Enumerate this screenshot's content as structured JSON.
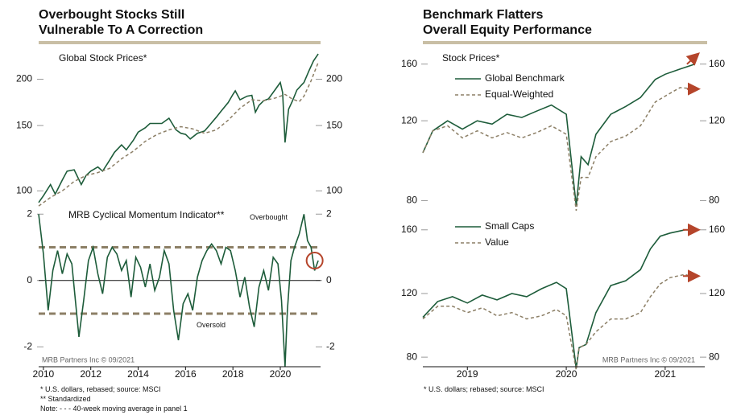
{
  "left": {
    "title_line1": "Overbought Stocks Still",
    "title_line2": "Vulnerable To A Correction",
    "notes": [
      "*  U.S. dollars, rebased; source: MSCI",
      "** Standardized",
      "Note: - - - 40-week moving average in panel 1"
    ]
  },
  "right": {
    "title_line1": "Benchmark Flatters",
    "title_line2": "Overall Equity Performance",
    "notes": [
      "* U.S. dollars; rebased; source: MSCI"
    ]
  },
  "colors": {
    "green": "#1d5c3a",
    "tan": "#8c7f66",
    "band": "#8c7f66",
    "arrow": "#b5452b",
    "rule": "#c9bfa5"
  },
  "chart_data": [
    {
      "type": "line",
      "title": "Global Stock Prices*",
      "y_scale": "log",
      "ylim": [
        92,
        240
      ],
      "yticks": [
        100,
        150,
        200
      ],
      "xlim": [
        2009.8,
        2021.7
      ],
      "series": [
        {
          "key": "price",
          "style": "solid",
          "color": "green",
          "x": [
            2009.8,
            2010.0,
            2010.3,
            2010.5,
            2010.8,
            2011.0,
            2011.3,
            2011.6,
            2011.8,
            2012.0,
            2012.3,
            2012.5,
            2012.8,
            2013.0,
            2013.3,
            2013.5,
            2013.8,
            2014.0,
            2014.3,
            2014.5,
            2014.8,
            2015.0,
            2015.3,
            2015.6,
            2015.8,
            2016.0,
            2016.2,
            2016.5,
            2016.8,
            2017.0,
            2017.3,
            2017.5,
            2017.8,
            2018.0,
            2018.1,
            2018.3,
            2018.6,
            2018.8,
            2018.95,
            2019.1,
            2019.3,
            2019.5,
            2019.8,
            2020.0,
            2020.1,
            2020.2,
            2020.35,
            2020.5,
            2020.7,
            2020.9,
            2021.0,
            2021.2,
            2021.4,
            2021.6
          ],
          "y": [
            93,
            97,
            104,
            98,
            107,
            113,
            114,
            104,
            110,
            113,
            116,
            113,
            121,
            127,
            133,
            129,
            137,
            144,
            148,
            152,
            152,
            152,
            157,
            146,
            143,
            142,
            138,
            143,
            145,
            150,
            158,
            164,
            173,
            182,
            186,
            176,
            180,
            181,
            163,
            170,
            175,
            177,
            188,
            196,
            184,
            135,
            166,
            174,
            187,
            193,
            196,
            210,
            224,
            234
          ]
        },
        {
          "key": "ma40",
          "style": "dashed",
          "color": "tan",
          "x": [
            2009.8,
            2010.3,
            2010.8,
            2011.3,
            2011.8,
            2012.3,
            2012.8,
            2013.3,
            2013.8,
            2014.3,
            2014.8,
            2015.3,
            2015.8,
            2016.3,
            2016.8,
            2017.3,
            2017.8,
            2018.3,
            2018.8,
            2019.3,
            2019.8,
            2020.2,
            2020.5,
            2020.8,
            2021.0,
            2021.3,
            2021.6
          ],
          "y": [
            91,
            96,
            100,
            106,
            110,
            112,
            115,
            122,
            128,
            136,
            142,
            146,
            149,
            147,
            143,
            146,
            155,
            167,
            176,
            175,
            178,
            182,
            177,
            174,
            180,
            198,
            222
          ]
        }
      ]
    },
    {
      "type": "line",
      "title": "MRB Cyclical Momentum Indicator**",
      "ylim": [
        -2.6,
        2.2
      ],
      "yticks": [
        -2,
        0,
        2
      ],
      "xlim": [
        2009.8,
        2021.7
      ],
      "xticks": [
        2010,
        2012,
        2014,
        2016,
        2018,
        2020
      ],
      "bands": [
        1,
        -1
      ],
      "annotations": [
        "Overbought",
        "Oversold"
      ],
      "source": "MRB Partners Inc © 09/2021",
      "series": [
        {
          "key": "momentum",
          "style": "solid",
          "color": "green",
          "x": [
            2009.8,
            2010.0,
            2010.2,
            2010.4,
            2010.6,
            2010.8,
            2011.0,
            2011.2,
            2011.5,
            2011.7,
            2011.9,
            2012.1,
            2012.3,
            2012.5,
            2012.7,
            2012.9,
            2013.1,
            2013.3,
            2013.5,
            2013.7,
            2013.9,
            2014.1,
            2014.3,
            2014.5,
            2014.7,
            2014.9,
            2015.1,
            2015.3,
            2015.5,
            2015.7,
            2015.9,
            2016.1,
            2016.3,
            2016.5,
            2016.7,
            2016.9,
            2017.1,
            2017.3,
            2017.5,
            2017.7,
            2017.9,
            2018.1,
            2018.3,
            2018.5,
            2018.7,
            2018.9,
            2019.1,
            2019.3,
            2019.5,
            2019.7,
            2019.9,
            2020.05,
            2020.2,
            2020.3,
            2020.45,
            2020.6,
            2020.8,
            2021.0,
            2021.15,
            2021.3,
            2021.45,
            2021.6
          ],
          "y": [
            2.0,
            0.8,
            -0.9,
            0.3,
            0.9,
            0.2,
            0.8,
            0.5,
            -1.7,
            -0.6,
            0.6,
            1.0,
            0.2,
            -0.4,
            0.7,
            1.0,
            0.8,
            0.3,
            0.6,
            -0.5,
            0.7,
            0.4,
            -0.2,
            0.5,
            -0.3,
            0.1,
            0.9,
            0.5,
            -0.9,
            -1.8,
            -0.7,
            -0.4,
            -0.9,
            0.1,
            0.6,
            0.9,
            1.1,
            0.9,
            0.5,
            1.0,
            0.9,
            0.3,
            -0.5,
            0.1,
            -0.8,
            -1.4,
            -0.2,
            0.3,
            -0.3,
            0.7,
            0.5,
            -0.6,
            -2.6,
            -0.9,
            0.6,
            1.0,
            1.4,
            2.0,
            1.2,
            1.0,
            0.3,
            0.6
          ]
        }
      ]
    },
    {
      "type": "line",
      "title": "Stock Prices*",
      "y_scale": "log",
      "ylim": [
        76,
        172
      ],
      "yticks": [
        80,
        120,
        160
      ],
      "xlim": [
        2018.55,
        2021.4
      ],
      "series": [
        {
          "key": "global",
          "name": "Global Benchmark",
          "style": "solid",
          "color": "green",
          "x": [
            2018.55,
            2018.65,
            2018.8,
            2018.95,
            2019.1,
            2019.25,
            2019.4,
            2019.55,
            2019.7,
            2019.85,
            2020.0,
            2020.1,
            2020.15,
            2020.22,
            2020.3,
            2020.45,
            2020.6,
            2020.75,
            2020.9,
            2021.0,
            2021.15,
            2021.3
          ],
          "y": [
            102,
            114,
            120,
            115,
            120,
            118,
            124,
            122,
            126,
            130,
            124,
            78,
            100,
            96,
            112,
            124,
            129,
            135,
            148,
            152,
            156,
            160
          ]
        },
        {
          "key": "equal",
          "name": "Equal-Weighted",
          "style": "dashed",
          "color": "tan",
          "x": [
            2018.55,
            2018.65,
            2018.8,
            2018.95,
            2019.1,
            2019.25,
            2019.4,
            2019.55,
            2019.7,
            2019.85,
            2020.0,
            2020.1,
            2020.15,
            2020.22,
            2020.3,
            2020.45,
            2020.6,
            2020.75,
            2020.9,
            2021.0,
            2021.15,
            2021.3
          ],
          "y": [
            102,
            114,
            117,
            110,
            114,
            110,
            113,
            110,
            113,
            117,
            112,
            76,
            90,
            90,
            100,
            108,
            111,
            117,
            132,
            136,
            142,
            141
          ]
        }
      ]
    },
    {
      "type": "line",
      "ylim": [
        74,
        170
      ],
      "yticks": [
        80,
        120,
        160
      ],
      "xlim": [
        2018.55,
        2021.4
      ],
      "xticks": [
        2019,
        2020,
        2021
      ],
      "source": "MRB Partners Inc © 09/2021",
      "series": [
        {
          "key": "small",
          "name": "Small Caps",
          "style": "solid",
          "color": "green",
          "x": [
            2018.55,
            2018.7,
            2018.85,
            2019.0,
            2019.15,
            2019.3,
            2019.45,
            2019.6,
            2019.75,
            2019.9,
            2020.0,
            2020.1,
            2020.13,
            2020.2,
            2020.3,
            2020.45,
            2020.6,
            2020.75,
            2020.85,
            2020.95,
            2021.05,
            2021.2,
            2021.3
          ],
          "y": [
            105,
            115,
            118,
            114,
            119,
            116,
            120,
            118,
            123,
            127,
            123,
            73,
            86,
            88,
            108,
            125,
            128,
            135,
            148,
            156,
            158,
            160,
            160
          ]
        },
        {
          "key": "value",
          "name": "Value",
          "style": "dashed",
          "color": "tan",
          "x": [
            2018.55,
            2018.7,
            2018.85,
            2019.0,
            2019.15,
            2019.3,
            2019.45,
            2019.6,
            2019.75,
            2019.9,
            2020.0,
            2020.1,
            2020.13,
            2020.2,
            2020.3,
            2020.45,
            2020.6,
            2020.75,
            2020.85,
            2020.95,
            2021.05,
            2021.2,
            2021.3
          ],
          "y": [
            104,
            112,
            112,
            108,
            111,
            106,
            108,
            104,
            106,
            110,
            106,
            72,
            86,
            88,
            96,
            104,
            104,
            108,
            118,
            126,
            130,
            132,
            130
          ]
        }
      ]
    }
  ]
}
